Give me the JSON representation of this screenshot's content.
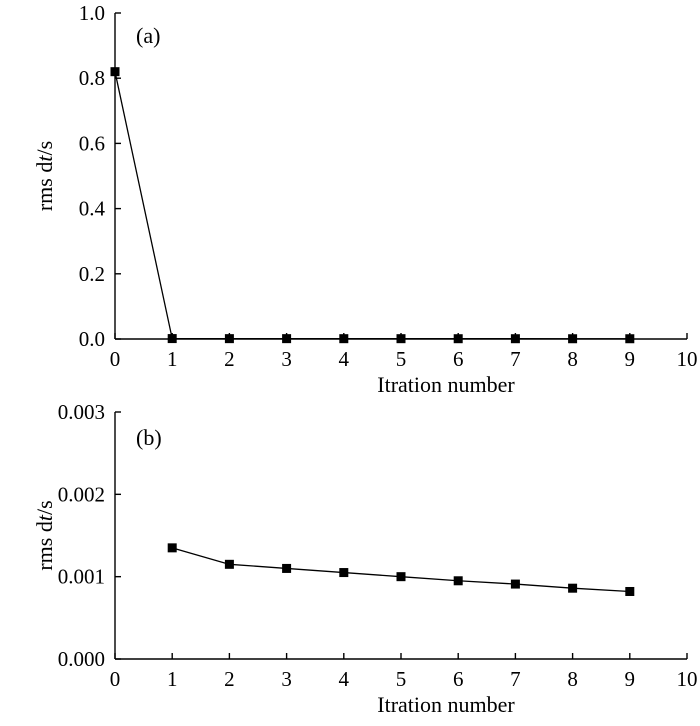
{
  "chart_data": [
    {
      "type": "line",
      "panel_label": "(a)",
      "xlabel": "Itration number",
      "ylabel_prefix": "rms d",
      "ylabel_italic": "t",
      "ylabel_suffix": "/s",
      "xlim": [
        0,
        10
      ],
      "ylim": [
        0,
        1.0
      ],
      "xticks": [
        "0",
        "1",
        "2",
        "3",
        "4",
        "5",
        "6",
        "7",
        "8",
        "9",
        "10"
      ],
      "yticks": [
        "0.0",
        "0.2",
        "0.4",
        "0.6",
        "0.8",
        "1.0"
      ],
      "grid": false,
      "series": [
        {
          "x": [
            0,
            1,
            2,
            3,
            4,
            5,
            6,
            7,
            8,
            9
          ],
          "y": [
            0.82,
            0.0013,
            0.0011,
            0.0011,
            0.001,
            0.001,
            0.0009,
            0.0009,
            0.0008,
            0.0008
          ]
        }
      ]
    },
    {
      "type": "line",
      "panel_label": "(b)",
      "xlabel": "Itration number",
      "ylabel_prefix": "rms d",
      "ylabel_italic": "t",
      "ylabel_suffix": "/s",
      "xlim": [
        0,
        10
      ],
      "ylim": [
        0,
        0.003
      ],
      "xticks": [
        "0",
        "1",
        "2",
        "3",
        "4",
        "5",
        "6",
        "7",
        "8",
        "9",
        "10"
      ],
      "yticks": [
        "0.000",
        "0.001",
        "0.002",
        "0.003"
      ],
      "grid": false,
      "series": [
        {
          "x": [
            1,
            2,
            3,
            4,
            5,
            6,
            7,
            8,
            9
          ],
          "y": [
            0.00135,
            0.00115,
            0.0011,
            0.00105,
            0.001,
            0.00095,
            0.00091,
            0.00086,
            0.00082
          ]
        }
      ]
    }
  ]
}
